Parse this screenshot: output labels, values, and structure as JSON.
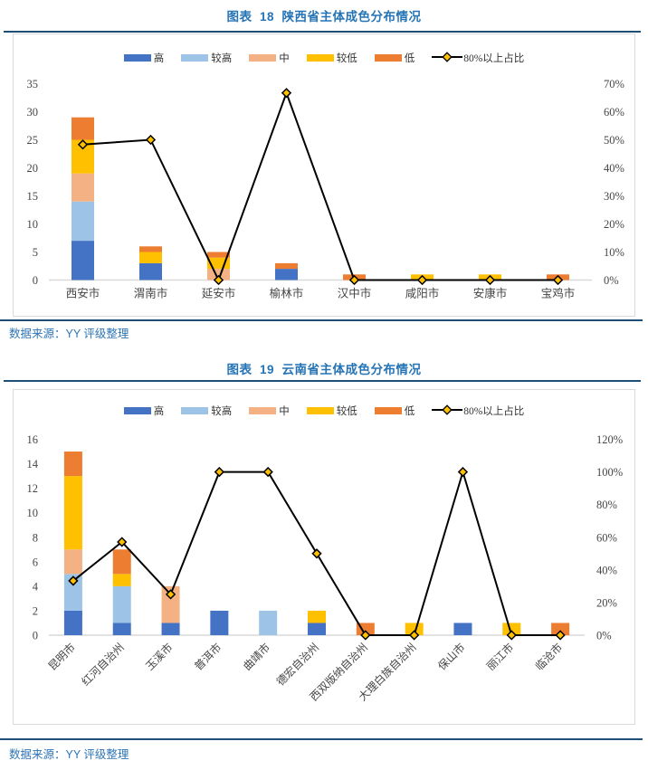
{
  "page": {
    "background": "#ffffff"
  },
  "figures": [
    {
      "title": "图表  18  陕西省主体成色分布情况",
      "source": "数据来源：YY 评级整理"
    },
    {
      "title": "图表  19  云南省主体成色分布情况",
      "source": "数据来源：YY 评级整理"
    }
  ],
  "colors": {
    "title_blue": "#2574B5",
    "source_blue": "#2E74B5",
    "rule_navy": "#1F4E79",
    "box_border": "#D9D9D9",
    "axis_line": "#D9D9D9",
    "axis_label": "#454545",
    "line_black": "#000000",
    "marker_yellow": "#FFC000"
  },
  "chart_data": [
    {
      "type": "bar",
      "stacked": true,
      "title": "图表 18 陕西省主体成色分布情况",
      "categories": [
        "西安市",
        "渭南市",
        "延安市",
        "榆林市",
        "汉中市",
        "咸阳市",
        "安康市",
        "宝鸡市"
      ],
      "series": [
        {
          "name": "高",
          "color": "#4472C4",
          "values": [
            7,
            3,
            0,
            2,
            0,
            0,
            0,
            0
          ]
        },
        {
          "name": "较高",
          "color": "#9DC3E6",
          "values": [
            7,
            0,
            0,
            0,
            0,
            0,
            0,
            0
          ]
        },
        {
          "name": "中",
          "color": "#F4B183",
          "values": [
            5,
            0,
            2,
            0,
            0,
            0,
            0,
            0
          ]
        },
        {
          "name": "较低",
          "color": "#FFC000",
          "values": [
            6,
            2,
            2,
            0,
            0,
            1,
            1,
            0
          ]
        },
        {
          "name": "低",
          "color": "#ED7D31",
          "values": [
            4,
            1,
            1,
            1,
            1,
            0,
            0,
            1
          ]
        }
      ],
      "line_series": {
        "name": "80%以上占比",
        "color": "#000000",
        "marker_fill": "#FFC000",
        "values_pct": [
          48.3,
          50,
          0,
          66.7,
          0,
          0,
          0,
          0
        ]
      },
      "left_axis": {
        "min": 0,
        "max": 35,
        "step": 5,
        "ticks": [
          0,
          5,
          10,
          15,
          20,
          25,
          30,
          35
        ]
      },
      "right_axis": {
        "min": 0,
        "max": 70,
        "step": 10,
        "suffix": "%",
        "ticks": [
          "0%",
          "10%",
          "20%",
          "30%",
          "40%",
          "50%",
          "60%",
          "70%"
        ]
      },
      "grid": false,
      "legend_position": "top",
      "category_label_rotation": 0
    },
    {
      "type": "bar",
      "stacked": true,
      "title": "图表 19 云南省主体成色分布情况",
      "categories": [
        "昆明市",
        "红河自治州",
        "玉溪市",
        "普洱市",
        "曲靖市",
        "德宏自治州",
        "西双版纳自治州",
        "大理白族自治州",
        "保山市",
        "丽江市",
        "临沧市"
      ],
      "series": [
        {
          "name": "高",
          "color": "#4472C4",
          "values": [
            2,
            1,
            1,
            2,
            0,
            1,
            0,
            0,
            1,
            0,
            0
          ]
        },
        {
          "name": "较高",
          "color": "#9DC3E6",
          "values": [
            3,
            3,
            0,
            0,
            2,
            0,
            0,
            0,
            0,
            0,
            0
          ]
        },
        {
          "name": "中",
          "color": "#F4B183",
          "values": [
            2,
            0,
            3,
            0,
            0,
            0,
            0,
            0,
            0,
            0,
            0
          ]
        },
        {
          "name": "较低",
          "color": "#FFC000",
          "values": [
            6,
            1,
            0,
            0,
            0,
            1,
            0,
            1,
            0,
            1,
            0
          ]
        },
        {
          "name": "低",
          "color": "#ED7D31",
          "values": [
            2,
            2,
            0,
            0,
            0,
            0,
            1,
            0,
            0,
            0,
            1
          ]
        }
      ],
      "line_series": {
        "name": "80%以上占比",
        "color": "#000000",
        "marker_fill": "#FFC000",
        "values_pct": [
          33.3,
          57.1,
          25,
          100,
          100,
          50,
          0,
          0,
          100,
          0,
          0
        ]
      },
      "left_axis": {
        "min": 0,
        "max": 16,
        "step": 2,
        "ticks": [
          0,
          2,
          4,
          6,
          8,
          10,
          12,
          14,
          16
        ]
      },
      "right_axis": {
        "min": 0,
        "max": 120,
        "step": 20,
        "suffix": "%",
        "ticks": [
          "0%",
          "20%",
          "40%",
          "60%",
          "80%",
          "100%",
          "120%"
        ]
      },
      "grid": false,
      "legend_position": "top",
      "category_label_rotation": 45
    }
  ]
}
